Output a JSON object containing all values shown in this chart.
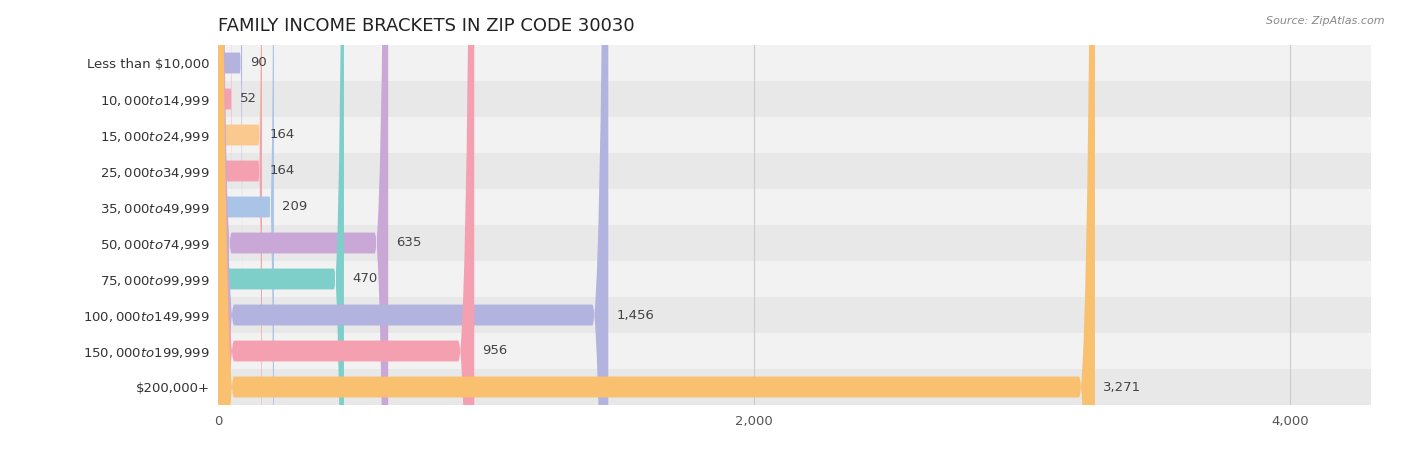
{
  "title": "FAMILY INCOME BRACKETS IN ZIP CODE 30030",
  "source": "Source: ZipAtlas.com",
  "categories": [
    "Less than $10,000",
    "$10,000 to $14,999",
    "$15,000 to $24,999",
    "$25,000 to $34,999",
    "$35,000 to $49,999",
    "$50,000 to $74,999",
    "$75,000 to $99,999",
    "$100,000 to $149,999",
    "$150,000 to $199,999",
    "$200,000+"
  ],
  "values": [
    90,
    52,
    164,
    164,
    209,
    635,
    470,
    1456,
    956,
    3271
  ],
  "bar_colors": [
    "#b3b3e0",
    "#f4a0b0",
    "#f9c990",
    "#f4a0b0",
    "#aac4e8",
    "#c9a8d8",
    "#7ecfca",
    "#b3b3e0",
    "#f4a0b0",
    "#f9c070"
  ],
  "bar_row_colors": [
    "#f2f2f2",
    "#e8e8e8"
  ],
  "xlim": [
    0,
    4300
  ],
  "xticks": [
    0,
    2000,
    4000
  ],
  "label_fontsize": 9.5,
  "title_fontsize": 13,
  "value_fontsize": 9.5,
  "background_color": "#ffffff",
  "bar_height": 0.58
}
